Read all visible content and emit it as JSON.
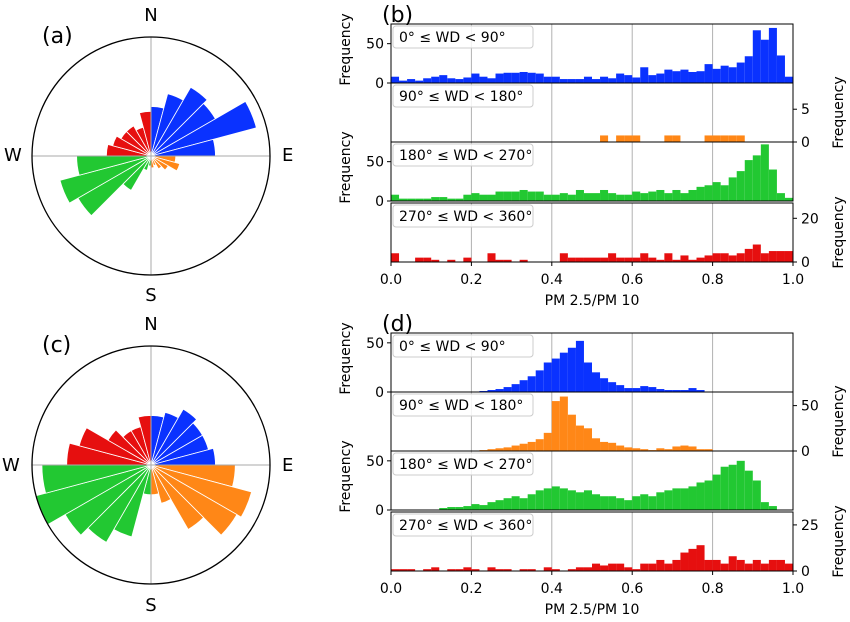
{
  "colors": {
    "q1": "#0a32ff",
    "q2": "#ff8717",
    "q3": "#22c832",
    "q4": "#e60f0f"
  },
  "quadrant_labels": [
    "0° ≤ WD <  90°",
    "90° ≤ WD < 180°",
    "180° ≤ WD < 270°",
    "270° ≤ WD < 360°"
  ],
  "compass": {
    "n": "N",
    "e": "E",
    "s": "S",
    "w": "W"
  },
  "chart_data": [
    {
      "type": "rose",
      "panel_label": "(a)",
      "rmax": 120,
      "sector_start_deg": [
        0,
        15,
        30,
        45,
        60,
        75,
        90,
        105,
        120,
        135,
        150,
        165,
        180,
        195,
        210,
        225,
        240,
        255,
        270,
        285,
        300,
        315,
        330,
        345
      ],
      "radii": [
        50,
        65,
        80,
        75,
        110,
        65,
        25,
        30,
        20,
        15,
        10,
        12,
        10,
        15,
        40,
        85,
        95,
        75,
        45,
        40,
        35,
        35,
        30,
        45
      ],
      "colors_by_quadrant": [
        "q1",
        "q2",
        "q3",
        "q4"
      ]
    },
    {
      "type": "rose",
      "panel_label": "(c)",
      "rmax": 120,
      "sector_start_deg": [
        0,
        15,
        30,
        45,
        60,
        75,
        90,
        105,
        120,
        135,
        150,
        165,
        180,
        195,
        210,
        225,
        240,
        255,
        270,
        285,
        300,
        315,
        330,
        345
      ],
      "radii": [
        50,
        55,
        65,
        60,
        60,
        65,
        85,
        105,
        100,
        75,
        40,
        30,
        30,
        75,
        90,
        100,
        120,
        110,
        85,
        75,
        50,
        40,
        40,
        50
      ],
      "colors_by_quadrant": [
        "q1",
        "q2",
        "q3",
        "q4"
      ]
    },
    {
      "type": "bar",
      "panel_label": "(b)",
      "xlabel": "PM 2.5/PM 10",
      "xlim": [
        0,
        1
      ],
      "xticks": [
        "0.0",
        "0.2",
        "0.4",
        "0.6",
        "0.8",
        "1.0"
      ],
      "bin_width": 0.02,
      "grid": true,
      "subplots": [
        {
          "label_index": 0,
          "color": "q1",
          "ylim": [
            0,
            75
          ],
          "yticks": [
            0,
            50
          ],
          "ylabel": "Frequency",
          "axis_side": "left",
          "bin_start": 0.0,
          "values": [
            8,
            3,
            5,
            3,
            6,
            8,
            10,
            6,
            5,
            7,
            12,
            8,
            6,
            12,
            13,
            13,
            14,
            13,
            12,
            8,
            8,
            5,
            5,
            5,
            8,
            5,
            8,
            6,
            12,
            10,
            7,
            20,
            10,
            12,
            17,
            15,
            17,
            14,
            15,
            24,
            18,
            22,
            20,
            26,
            34,
            67,
            55,
            70,
            35,
            8,
            5
          ]
        },
        {
          "label_index": 1,
          "color": "q2",
          "ylim": [
            0,
            9
          ],
          "yticks": [
            0,
            5
          ],
          "ylabel": "Frequency",
          "axis_side": "right",
          "bin_start": 0.0,
          "values": [
            0,
            0,
            0,
            0,
            0,
            0,
            0,
            0,
            0,
            0,
            0,
            0,
            0,
            0,
            0,
            0,
            0,
            0,
            0,
            0,
            0,
            0,
            0,
            0,
            0,
            0,
            1,
            0,
            1,
            1,
            1,
            0,
            0,
            0,
            1,
            1,
            0,
            0,
            0,
            1,
            1,
            1,
            1,
            1,
            0,
            0,
            0,
            0,
            0,
            0,
            0,
            0,
            0,
            0,
            0,
            0,
            0,
            0,
            1,
            1,
            1,
            1,
            1,
            1,
            1,
            1,
            0,
            0,
            0,
            2,
            3,
            3,
            2,
            2,
            4,
            4,
            9,
            5,
            7,
            7,
            5,
            4,
            1,
            0,
            0
          ]
        },
        {
          "label_index": 2,
          "color": "q3",
          "ylim": [
            0,
            75
          ],
          "yticks": [
            0,
            50
          ],
          "ylabel": "Frequency",
          "axis_side": "left",
          "bin_start": 0.0,
          "values": [
            8,
            3,
            3,
            3,
            3,
            5,
            5,
            3,
            3,
            8,
            10,
            8,
            8,
            12,
            12,
            12,
            14,
            12,
            12,
            8,
            8,
            10,
            8,
            14,
            10,
            10,
            14,
            10,
            8,
            8,
            12,
            10,
            12,
            14,
            10,
            14,
            10,
            14,
            18,
            20,
            24,
            20,
            30,
            38,
            52,
            58,
            72,
            40,
            10,
            4
          ]
        },
        {
          "label_index": 3,
          "color": "q4",
          "ylim": [
            0,
            27
          ],
          "yticks": [
            0,
            20
          ],
          "ylabel": "Frequency",
          "axis_side": "right",
          "bin_start": 0.0,
          "values": [
            4,
            0,
            0,
            2,
            2,
            1,
            0,
            1,
            0,
            2,
            0,
            0,
            4,
            1,
            1,
            0,
            1,
            0,
            0,
            0,
            0,
            4,
            2,
            2,
            2,
            2,
            2,
            4,
            2,
            2,
            2,
            4,
            2,
            1,
            4,
            1,
            3,
            1,
            2,
            3,
            4,
            4,
            3,
            4,
            6,
            8,
            4,
            5,
            5,
            5,
            2,
            2,
            4,
            4,
            3,
            4,
            4,
            6,
            4,
            6,
            7,
            10,
            14,
            12,
            16,
            18,
            24,
            26,
            26,
            20,
            12,
            10,
            2,
            2
          ]
        }
      ]
    },
    {
      "type": "bar",
      "panel_label": "(d)",
      "xlabel": "PM 2.5/PM 10",
      "xlim": [
        0,
        1
      ],
      "xticks": [
        "0.0",
        "0.2",
        "0.4",
        "0.6",
        "0.8",
        "1.0"
      ],
      "bin_width": 0.02,
      "grid": true,
      "subplots": [
        {
          "label_index": 0,
          "color": "q1",
          "ylim": [
            0,
            60
          ],
          "yticks": [
            0,
            50
          ],
          "ylabel": "Frequency",
          "axis_side": "left",
          "bin_start": 0.22,
          "values": [
            1,
            2,
            3,
            5,
            8,
            12,
            16,
            22,
            30,
            34,
            40,
            45,
            52,
            30,
            20,
            14,
            10,
            7,
            4,
            4,
            6,
            5,
            3,
            2,
            2,
            2,
            4,
            2
          ]
        },
        {
          "label_index": 1,
          "color": "q2",
          "ylim": [
            0,
            65
          ],
          "yticks": [
            0,
            50
          ],
          "ylabel": "Frequency",
          "axis_side": "right",
          "bin_start": 0.22,
          "values": [
            1,
            2,
            3,
            4,
            6,
            8,
            10,
            13,
            20,
            55,
            60,
            40,
            28,
            25,
            14,
            10,
            9,
            6,
            4,
            3,
            2,
            1,
            3,
            2,
            5,
            6,
            5,
            2,
            2
          ]
        },
        {
          "label_index": 2,
          "color": "q3",
          "ylim": [
            0,
            60
          ],
          "yticks": [
            0,
            50
          ],
          "ylabel": "Frequency",
          "axis_side": "left",
          "bin_start": 0.12,
          "values": [
            2,
            3,
            3,
            4,
            6,
            5,
            8,
            10,
            12,
            14,
            12,
            16,
            20,
            22,
            24,
            22,
            20,
            18,
            20,
            16,
            14,
            14,
            12,
            10,
            14,
            16,
            14,
            18,
            20,
            22,
            22,
            24,
            28,
            30,
            36,
            44,
            46,
            50,
            40,
            30,
            8,
            4
          ]
        },
        {
          "label_index": 3,
          "color": "q4",
          "ylim": [
            0,
            32
          ],
          "yticks": [
            0,
            25
          ],
          "ylabel": "Frequency",
          "axis_side": "right",
          "bin_start": 0.0,
          "values": [
            1,
            1,
            1,
            0,
            1,
            2,
            0,
            1,
            1,
            2,
            1,
            0,
            2,
            1,
            1,
            0,
            1,
            1,
            0,
            2,
            1,
            0,
            1,
            2,
            2,
            4,
            3,
            4,
            4,
            2,
            1,
            4,
            4,
            6,
            4,
            6,
            10,
            12,
            14,
            6,
            6,
            4,
            8,
            6,
            4,
            6,
            4,
            6,
            6,
            4,
            4,
            4,
            3,
            4,
            4,
            6,
            8,
            10,
            12,
            16,
            18,
            24,
            28,
            22,
            12,
            6,
            2,
            2
          ]
        }
      ]
    }
  ]
}
